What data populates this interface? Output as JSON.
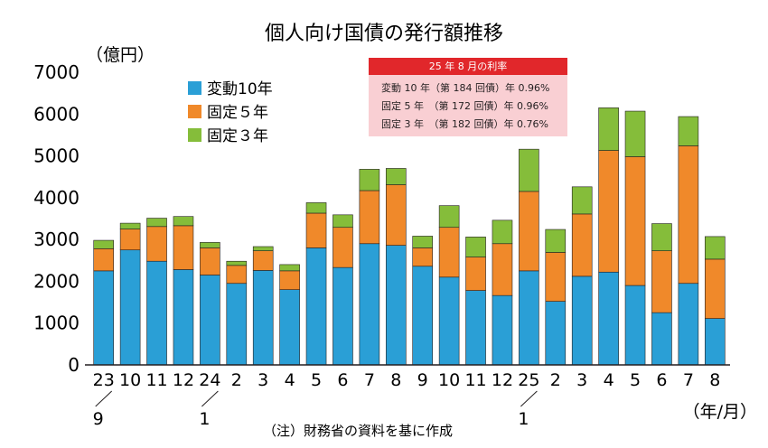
{
  "chart_data": {
    "type": "bar",
    "stacked": true,
    "title": "個人向け国債の発行額推移",
    "ylabel": "（億円）",
    "xlabel": "（年/月）",
    "ylim": [
      0,
      7000
    ],
    "yticks": [
      0,
      1000,
      2000,
      3000,
      4000,
      5000,
      6000,
      7000
    ],
    "categories": [
      "23/9",
      "10",
      "11",
      "12",
      "24/1",
      "2",
      "3",
      "4",
      "5",
      "6",
      "7",
      "8",
      "9",
      "10",
      "11",
      "12",
      "25/1",
      "2",
      "3",
      "4",
      "5",
      "6",
      "7",
      "8"
    ],
    "tick_labels": [
      "23",
      "10",
      "11",
      "12",
      "24",
      "2",
      "3",
      "4",
      "5",
      "6",
      "7",
      "8",
      "9",
      "10",
      "11",
      "12",
      "25",
      "2",
      "3",
      "4",
      "5",
      "6",
      "7",
      "8"
    ],
    "sub_labels": [
      {
        "index": 0,
        "text": "9"
      },
      {
        "index": 4,
        "text": "1"
      },
      {
        "index": 16,
        "text": "1"
      }
    ],
    "series": [
      {
        "name": "変動10年",
        "color": "#2a9fd6",
        "values": [
          2250,
          2750,
          2480,
          2280,
          2150,
          1950,
          2260,
          1800,
          2800,
          2330,
          2900,
          2860,
          2360,
          2100,
          1780,
          1660,
          2250,
          1520,
          2120,
          2220,
          1900,
          1250,
          1950,
          1110
        ]
      },
      {
        "name": "固定５年",
        "color": "#f0892a",
        "values": [
          530,
          500,
          830,
          1050,
          650,
          430,
          470,
          450,
          830,
          960,
          1270,
          1450,
          440,
          1190,
          800,
          1240,
          1900,
          1170,
          1490,
          2910,
          3080,
          1480,
          3290,
          1420
        ]
      },
      {
        "name": "固定３年",
        "color": "#85bd3a",
        "values": [
          200,
          140,
          200,
          220,
          130,
          100,
          100,
          150,
          250,
          300,
          510,
          390,
          280,
          520,
          480,
          560,
          1010,
          550,
          650,
          1020,
          1090,
          650,
          700,
          540
        ]
      }
    ],
    "legend_position": "top-left",
    "grid": false
  },
  "rate_box": {
    "heading": "25 年 8 月の利率",
    "lines": [
      "変動 10 年（第 184 回債）年 0.96%",
      "固定 5 年　（第 172 回債）年 0.96%",
      "固定 3 年　（第 182 回債）年 0.76%"
    ]
  },
  "note": "（注）財務省の資料を基に作成"
}
